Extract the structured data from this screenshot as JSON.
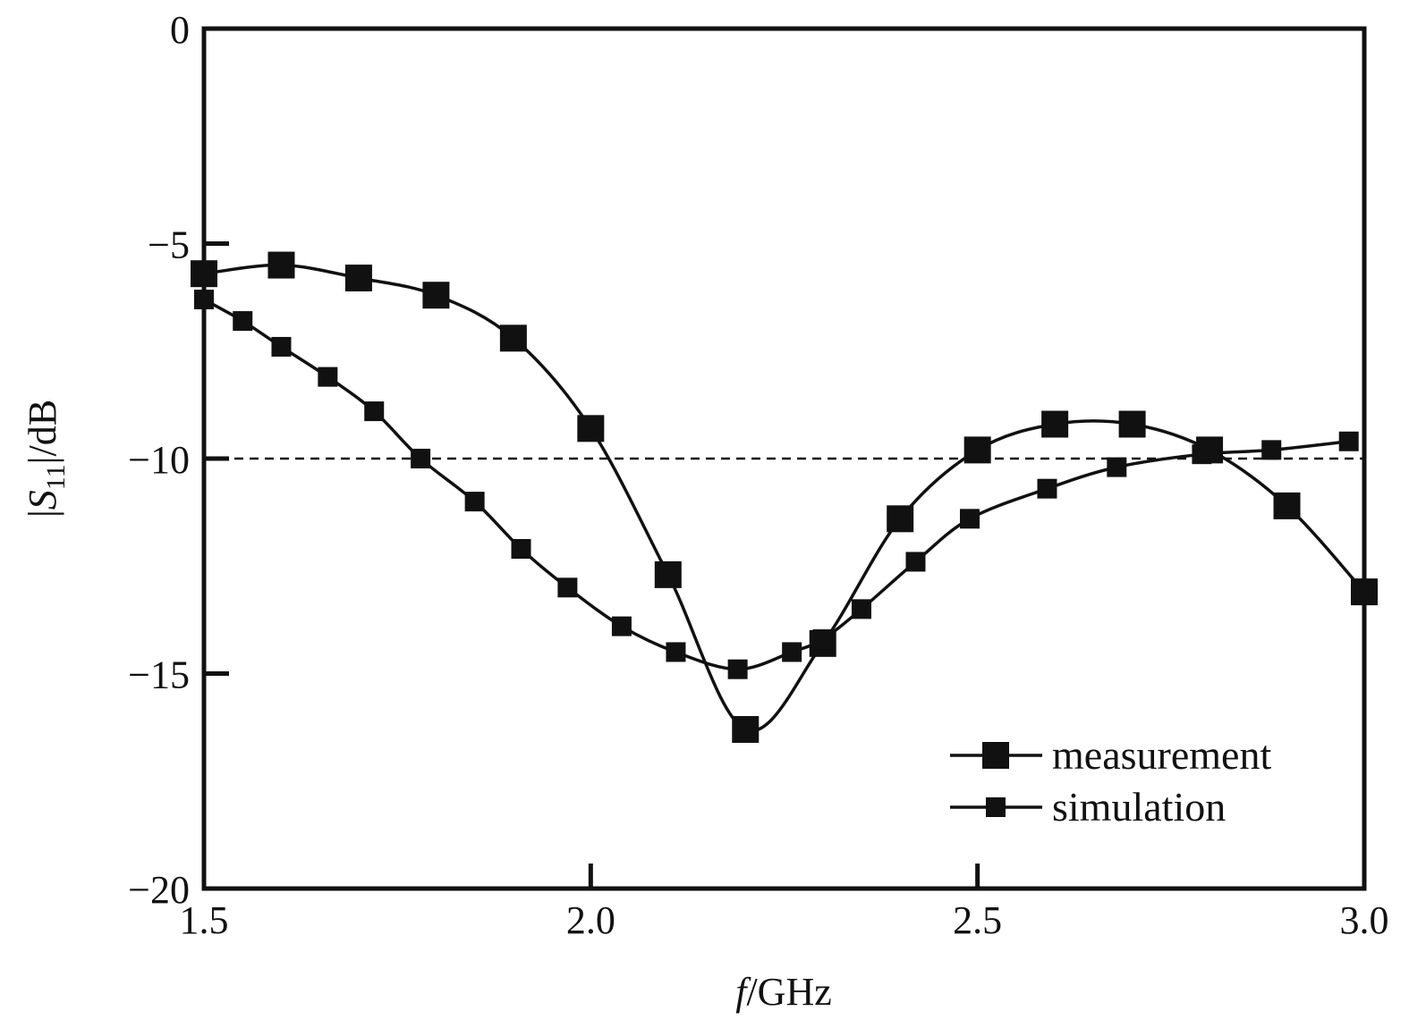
{
  "chart_data": {
    "type": "line",
    "xlabel": {
      "italic": "f",
      "rest": "/GHz"
    },
    "ylabel": {
      "pre": "|",
      "italic": "S",
      "sub": "11",
      "post": "|/dB"
    },
    "xlim": [
      1.5,
      3.0
    ],
    "ylim": [
      -20,
      0
    ],
    "xticks": [
      1.5,
      2.0,
      2.5,
      3.0
    ],
    "xtick_labels": [
      "1.5",
      "2.0",
      "2.5",
      "3.0"
    ],
    "yticks": [
      0,
      -5,
      -10,
      -15,
      -20
    ],
    "ytick_labels": [
      "0",
      "−5",
      "−10",
      "−15",
      "−20"
    ],
    "grid": false,
    "legend_position": "bottom-right",
    "reference_line": {
      "y": -10,
      "style": "dashed"
    },
    "colors": {
      "line": "#111111",
      "frame": "#111111"
    },
    "series": [
      {
        "name": "measurement",
        "marker": "large-square",
        "x": [
          1.5,
          1.6,
          1.7,
          1.8,
          1.9,
          2.0,
          2.1,
          2.2,
          2.3,
          2.4,
          2.5,
          2.6,
          2.7,
          2.8,
          2.9,
          3.0
        ],
        "y": [
          -5.7,
          -5.5,
          -5.8,
          -6.2,
          -7.2,
          -9.3,
          -12.7,
          -16.3,
          -14.3,
          -11.4,
          -9.8,
          -9.2,
          -9.2,
          -9.8,
          -11.1,
          -13.1
        ]
      },
      {
        "name": "simulation",
        "marker": "small-square",
        "x": [
          1.5,
          1.55,
          1.6,
          1.66,
          1.72,
          1.78,
          1.85,
          1.91,
          1.97,
          2.04,
          2.11,
          2.19,
          2.26,
          2.3,
          2.35,
          2.42,
          2.49,
          2.59,
          2.68,
          2.79,
          2.88,
          2.98
        ],
        "y": [
          -6.3,
          -6.8,
          -7.4,
          -8.1,
          -8.9,
          -10.0,
          -11.0,
          -12.1,
          -13.0,
          -13.9,
          -14.5,
          -14.9,
          -14.5,
          -14.2,
          -13.5,
          -12.4,
          -11.4,
          -10.7,
          -10.2,
          -9.9,
          -9.8,
          -9.6
        ]
      }
    ]
  }
}
